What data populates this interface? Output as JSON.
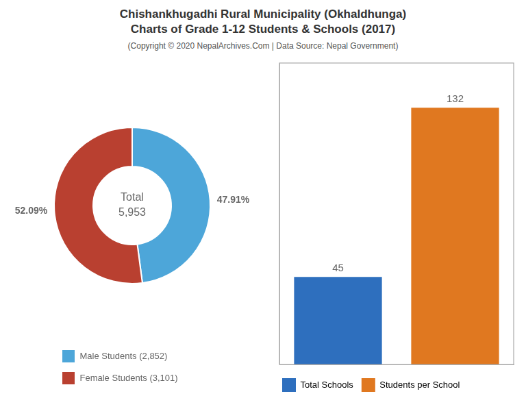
{
  "chart_data": [
    {
      "type": "doughnut",
      "title": [
        "Chishankhugadhi Rural Municipality (Okhaldhunga)",
        "Charts of Grade 1-12 Students & Schools (2017)"
      ],
      "subtitle": "(Copyright © 2020 NepalArchives.Com | Data Source: Nepal Government)",
      "categories": [
        "Male Students (2,852)",
        "Female Students (3,101)"
      ],
      "values": [
        47.91,
        52.09
      ],
      "value_labels": [
        "47.91%",
        "52.09%"
      ],
      "data_labels": true,
      "colors": [
        "#4da6d9",
        "#b94030"
      ],
      "annotations": [
        "Total",
        "5,953"
      ],
      "legend": "bottom"
    },
    {
      "type": "bar",
      "categories": [
        "Total Schools",
        "Students per School"
      ],
      "values": [
        45,
        132
      ],
      "colors": [
        "#2e6fbe",
        "#e07820"
      ],
      "ylim": [
        0,
        155
      ],
      "tick_labels": false,
      "grid": false,
      "data_labels": true,
      "legend": "bottom"
    }
  ]
}
